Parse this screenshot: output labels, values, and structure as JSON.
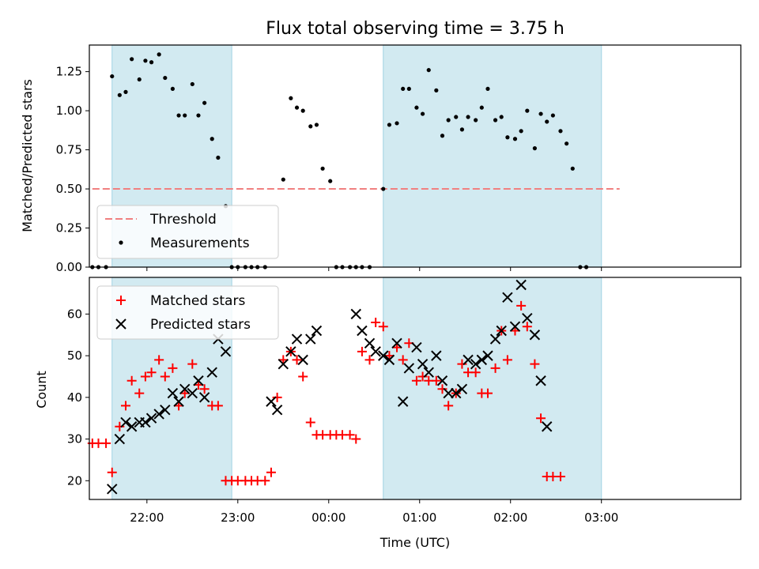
{
  "chart_data": [
    {
      "type": "scatter",
      "title": "Flux total observing time = 3.75 h",
      "xlabel": "",
      "ylabel": "Matched/Predicted stars",
      "ylim": [
        0,
        1.42
      ],
      "yticks": [
        "0.00",
        "0.25",
        "0.50",
        "0.75",
        "1.00",
        "1.25"
      ],
      "ytick_values": [
        0,
        0.25,
        0.5,
        0.75,
        1.0,
        1.25
      ],
      "threshold": {
        "name": "Threshold",
        "value": 0.5,
        "x_from": "21:24",
        "x_to": "03:12",
        "color": "#f08080"
      },
      "legend": {
        "position": "lower-left",
        "entries": [
          "Threshold",
          "Measurements"
        ]
      },
      "measurements": {
        "name": "Measurements",
        "color": "#000000",
        "points": [
          [
            "21:24",
            0
          ],
          [
            "21:28",
            0
          ],
          [
            "21:33",
            0
          ],
          [
            "21:37",
            1.22
          ],
          [
            "21:42",
            1.1
          ],
          [
            "21:46",
            1.12
          ],
          [
            "21:50",
            1.33
          ],
          [
            "21:55",
            1.2
          ],
          [
            "21:59",
            1.32
          ],
          [
            "22:03",
            1.31
          ],
          [
            "22:08",
            1.36
          ],
          [
            "22:12",
            1.21
          ],
          [
            "22:17",
            1.14
          ],
          [
            "22:21",
            0.97
          ],
          [
            "22:25",
            0.97
          ],
          [
            "22:30",
            1.17
          ],
          [
            "22:34",
            0.97
          ],
          [
            "22:38",
            1.05
          ],
          [
            "22:43",
            0.82
          ],
          [
            "22:47",
            0.7
          ],
          [
            "22:52",
            0.39
          ],
          [
            "22:56",
            0
          ],
          [
            "23:00",
            0
          ],
          [
            "23:05",
            0
          ],
          [
            "23:09",
            0
          ],
          [
            "23:13",
            0
          ],
          [
            "23:18",
            0
          ],
          [
            "23:30",
            0.56
          ],
          [
            "23:35",
            1.08
          ],
          [
            "23:39",
            1.02
          ],
          [
            "23:43",
            1.0
          ],
          [
            "23:48",
            0.9
          ],
          [
            "23:52",
            0.91
          ],
          [
            "23:56",
            0.63
          ],
          [
            "00:01",
            0.55
          ],
          [
            "00:05",
            0
          ],
          [
            "00:09",
            0
          ],
          [
            "00:14",
            0
          ],
          [
            "00:18",
            0
          ],
          [
            "00:22",
            0
          ],
          [
            "00:27",
            0
          ],
          [
            "00:36",
            0.5
          ],
          [
            "00:40",
            0.91
          ],
          [
            "00:45",
            0.92
          ],
          [
            "00:49",
            1.14
          ],
          [
            "00:53",
            1.14
          ],
          [
            "00:58",
            1.02
          ],
          [
            "01:02",
            0.98
          ],
          [
            "01:06",
            1.26
          ],
          [
            "01:11",
            1.13
          ],
          [
            "01:15",
            0.84
          ],
          [
            "01:19",
            0.94
          ],
          [
            "01:24",
            0.96
          ],
          [
            "01:28",
            0.88
          ],
          [
            "01:32",
            0.96
          ],
          [
            "01:37",
            0.94
          ],
          [
            "01:41",
            1.02
          ],
          [
            "01:45",
            1.14
          ],
          [
            "01:50",
            0.94
          ],
          [
            "01:54",
            0.96
          ],
          [
            "01:58",
            0.83
          ],
          [
            "02:03",
            0.82
          ],
          [
            "02:07",
            0.87
          ],
          [
            "02:11",
            1.0
          ],
          [
            "02:16",
            0.76
          ],
          [
            "02:20",
            0.98
          ],
          [
            "02:24",
            0.93
          ],
          [
            "02:28",
            0.97
          ],
          [
            "02:33",
            0.87
          ],
          [
            "02:37",
            0.79
          ],
          [
            "02:41",
            0.63
          ],
          [
            "02:46",
            0
          ],
          [
            "02:50",
            0
          ]
        ]
      },
      "highlight_periods": [
        [
          "21:37",
          "22:56"
        ],
        [
          "00:36",
          "03:00"
        ]
      ],
      "highlight_color": "#add8e6"
    },
    {
      "type": "scatter",
      "title": "",
      "xlabel": "Time (UTC)",
      "ylabel": "Count",
      "ylim": [
        15.5,
        68.8
      ],
      "yticks": [
        "20",
        "30",
        "40",
        "50",
        "60"
      ],
      "ytick_values": [
        20,
        30,
        40,
        50,
        60
      ],
      "xticks": [
        "22:00",
        "23:00",
        "00:00",
        "01:00",
        "02:00",
        "03:00"
      ],
      "legend": {
        "position": "upper-left",
        "entries": [
          "Matched stars",
          "Predicted stars"
        ]
      },
      "series": [
        {
          "name": "Matched stars",
          "marker": "plus",
          "color": "#ff0000",
          "points": [
            [
              "21:24",
              29
            ],
            [
              "21:28",
              29
            ],
            [
              "21:33",
              29
            ],
            [
              "21:37",
              22
            ],
            [
              "21:42",
              33
            ],
            [
              "21:46",
              38
            ],
            [
              "21:50",
              44
            ],
            [
              "21:55",
              41
            ],
            [
              "21:59",
              45
            ],
            [
              "22:03",
              46
            ],
            [
              "22:08",
              49
            ],
            [
              "22:12",
              45
            ],
            [
              "22:17",
              47
            ],
            [
              "22:21",
              38
            ],
            [
              "22:25",
              41
            ],
            [
              "22:30",
              48
            ],
            [
              "22:34",
              43
            ],
            [
              "22:38",
              42
            ],
            [
              "22:43",
              38
            ],
            [
              "22:47",
              38
            ],
            [
              "22:52",
              20
            ],
            [
              "22:56",
              20
            ],
            [
              "23:00",
              20
            ],
            [
              "23:05",
              20
            ],
            [
              "23:09",
              20
            ],
            [
              "23:13",
              20
            ],
            [
              "23:18",
              20
            ],
            [
              "23:22",
              22
            ],
            [
              "23:26",
              40
            ],
            [
              "23:30",
              49
            ],
            [
              "23:35",
              51
            ],
            [
              "23:39",
              49
            ],
            [
              "23:43",
              45
            ],
            [
              "23:48",
              34
            ],
            [
              "23:52",
              31
            ],
            [
              "23:56",
              31
            ],
            [
              "00:01",
              31
            ],
            [
              "00:05",
              31
            ],
            [
              "00:09",
              31
            ],
            [
              "00:14",
              31
            ],
            [
              "00:18",
              30
            ],
            [
              "00:22",
              51
            ],
            [
              "00:27",
              49
            ],
            [
              "00:31",
              58
            ],
            [
              "00:36",
              57
            ],
            [
              "00:40",
              50
            ],
            [
              "00:45",
              52
            ],
            [
              "00:49",
              49
            ],
            [
              "00:53",
              53
            ],
            [
              "00:58",
              44
            ],
            [
              "01:02",
              45
            ],
            [
              "01:06",
              44
            ],
            [
              "01:11",
              44
            ],
            [
              "01:15",
              42
            ],
            [
              "01:19",
              38
            ],
            [
              "01:24",
              41
            ],
            [
              "01:28",
              48
            ],
            [
              "01:32",
              46
            ],
            [
              "01:37",
              46
            ],
            [
              "01:41",
              41
            ],
            [
              "01:45",
              41
            ],
            [
              "01:50",
              47
            ],
            [
              "01:54",
              56
            ],
            [
              "01:58",
              49
            ],
            [
              "02:03",
              56
            ],
            [
              "02:07",
              62
            ],
            [
              "02:11",
              57
            ],
            [
              "02:16",
              48
            ],
            [
              "02:20",
              35
            ],
            [
              "02:24",
              21
            ],
            [
              "02:28",
              21
            ],
            [
              "02:33",
              21
            ]
          ]
        },
        {
          "name": "Predicted stars",
          "marker": "x",
          "color": "#000000",
          "points": [
            [
              "21:37",
              18
            ],
            [
              "21:42",
              30
            ],
            [
              "21:46",
              34
            ],
            [
              "21:50",
              33
            ],
            [
              "21:55",
              34
            ],
            [
              "21:59",
              34
            ],
            [
              "22:03",
              35
            ],
            [
              "22:08",
              36
            ],
            [
              "22:12",
              37
            ],
            [
              "22:17",
              41
            ],
            [
              "22:21",
              39
            ],
            [
              "22:25",
              42
            ],
            [
              "22:30",
              41
            ],
            [
              "22:34",
              44
            ],
            [
              "22:38",
              40
            ],
            [
              "22:43",
              46
            ],
            [
              "22:47",
              54
            ],
            [
              "22:52",
              51
            ],
            [
              "23:22",
              39
            ],
            [
              "23:26",
              37
            ],
            [
              "23:30",
              48
            ],
            [
              "23:35",
              51
            ],
            [
              "23:39",
              54
            ],
            [
              "23:43",
              49
            ],
            [
              "23:48",
              54
            ],
            [
              "23:52",
              56
            ],
            [
              "00:18",
              60
            ],
            [
              "00:22",
              56
            ],
            [
              "00:27",
              53
            ],
            [
              "00:31",
              51
            ],
            [
              "00:36",
              50
            ],
            [
              "00:40",
              49
            ],
            [
              "00:45",
              53
            ],
            [
              "00:49",
              39
            ],
            [
              "00:53",
              47
            ],
            [
              "00:58",
              52
            ],
            [
              "01:02",
              48
            ],
            [
              "01:06",
              46
            ],
            [
              "01:11",
              50
            ],
            [
              "01:15",
              44
            ],
            [
              "01:19",
              41
            ],
            [
              "01:24",
              41
            ],
            [
              "01:28",
              42
            ],
            [
              "01:32",
              49
            ],
            [
              "01:37",
              48
            ],
            [
              "01:41",
              49
            ],
            [
              "01:45",
              50
            ],
            [
              "01:50",
              54
            ],
            [
              "01:54",
              56
            ],
            [
              "01:58",
              64
            ],
            [
              "02:03",
              57
            ],
            [
              "02:07",
              67
            ],
            [
              "02:11",
              59
            ],
            [
              "02:16",
              55
            ],
            [
              "02:20",
              44
            ],
            [
              "02:24",
              33
            ]
          ]
        }
      ],
      "highlight_periods": [
        [
          "21:37",
          "22:56"
        ],
        [
          "00:36",
          "03:00"
        ]
      ],
      "highlight_color": "#add8e6"
    }
  ]
}
